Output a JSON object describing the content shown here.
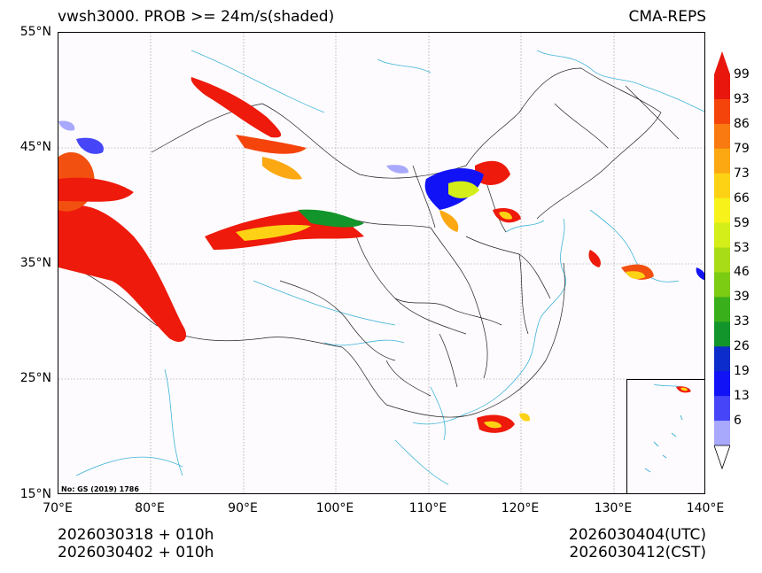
{
  "title": {
    "left": "vwsh3000. PROB >= 24m/s(shaded)",
    "right": "CMA-REPS"
  },
  "axes": {
    "lat_labels": [
      "55°N",
      "45°N",
      "35°N",
      "25°N",
      "15°N"
    ],
    "lon_labels": [
      "70°E",
      "80°E",
      "90°E",
      "100°E",
      "110°E",
      "120°E",
      "130°E",
      "140°E"
    ]
  },
  "map_note": "No: GS (2019) 1786",
  "colorbar": {
    "levels": [
      "99",
      "93",
      "86",
      "79",
      "73",
      "66",
      "59",
      "53",
      "46",
      "39",
      "33",
      "26",
      "19",
      "13",
      "6"
    ],
    "colors": [
      "#e8160c",
      "#f4440c",
      "#f97a10",
      "#fba812",
      "#fed214",
      "#f6f21a",
      "#d3ee18",
      "#a8dc16",
      "#7ccc14",
      "#3aaf1c",
      "#12952a",
      "#0c2ccb",
      "#1212f6",
      "#4646f8",
      "#a8a8fc"
    ]
  },
  "footer": {
    "left_line1": "2026030318  +  010h",
    "left_line2": "2026030402  +  010h",
    "right_line1": "2026030404(UTC)",
    "right_line2": "2026030412(CST)"
  }
}
